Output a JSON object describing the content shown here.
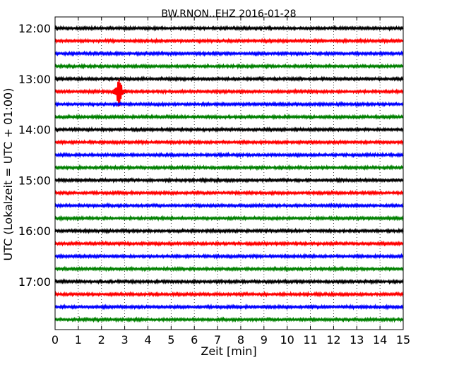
{
  "chart_data": {
    "type": "line",
    "title": "BW.RNON..EHZ 2016-01-28",
    "xlabel": "Zeit  [min]",
    "ylabel": "UTC (Lokalzeit = UTC + 01:00)",
    "xlim": [
      0,
      15
    ],
    "x_ticks": [
      "0",
      "1",
      "2",
      "3",
      "4",
      "5",
      "6",
      "7",
      "8",
      "9",
      "10",
      "11",
      "12",
      "13",
      "14",
      "15"
    ],
    "y_tick_labels": [
      "12:00",
      "13:00",
      "14:00",
      "15:00",
      "16:00",
      "17:00"
    ],
    "grid": "vertical dotted lines at each minute",
    "line_colors": [
      "#000000",
      "#ff0000",
      "#0000ff",
      "#008000"
    ],
    "traces": [
      {
        "start": "12:00",
        "color": "#000000"
      },
      {
        "start": "12:15",
        "color": "#ff0000"
      },
      {
        "start": "12:30",
        "color": "#0000ff"
      },
      {
        "start": "12:45",
        "color": "#008000"
      },
      {
        "start": "13:00",
        "color": "#000000"
      },
      {
        "start": "13:15",
        "color": "#ff0000",
        "events": [
          {
            "minute": 2.75,
            "amplitude": 1.0
          }
        ]
      },
      {
        "start": "13:30",
        "color": "#0000ff"
      },
      {
        "start": "13:45",
        "color": "#008000"
      },
      {
        "start": "14:00",
        "color": "#000000"
      },
      {
        "start": "14:15",
        "color": "#ff0000"
      },
      {
        "start": "14:30",
        "color": "#0000ff"
      },
      {
        "start": "14:45",
        "color": "#008000"
      },
      {
        "start": "15:00",
        "color": "#000000"
      },
      {
        "start": "15:15",
        "color": "#ff0000"
      },
      {
        "start": "15:30",
        "color": "#0000ff"
      },
      {
        "start": "15:45",
        "color": "#008000"
      },
      {
        "start": "16:00",
        "color": "#000000"
      },
      {
        "start": "16:15",
        "color": "#ff0000"
      },
      {
        "start": "16:30",
        "color": "#0000ff"
      },
      {
        "start": "16:45",
        "color": "#008000"
      },
      {
        "start": "17:00",
        "color": "#000000"
      },
      {
        "start": "17:15",
        "color": "#ff0000"
      },
      {
        "start": "17:30",
        "color": "#0000ff"
      },
      {
        "start": "17:45",
        "color": "#008000"
      }
    ]
  }
}
